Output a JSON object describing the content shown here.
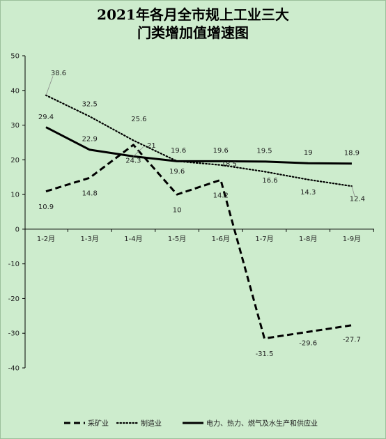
{
  "chart_data": {
    "type": "line",
    "title": "2021年各月全市规上工业三大门类增加值增速图",
    "title_lines": [
      "2021年各月全市规上工业三大",
      "门类增加值增速图"
    ],
    "categories": [
      "1-2月",
      "1-3月",
      "1-4月",
      "1-5月",
      "1-6月",
      "1-7月",
      "1-8月",
      "1-9月"
    ],
    "ylim": [
      -40,
      50
    ],
    "yticks": [
      50,
      40,
      30,
      20,
      10,
      0,
      -10,
      -20,
      -30,
      -40
    ],
    "grid": false,
    "legend_position": "bottom",
    "series": [
      {
        "name": "采矿业",
        "style": "dashed",
        "values": [
          10.9,
          14.8,
          24.3,
          10,
          14.2,
          -31.5,
          -29.6,
          -27.7
        ]
      },
      {
        "name": "制造业",
        "style": "dotted",
        "values": [
          38.6,
          32.5,
          25.6,
          19.6,
          18.5,
          16.6,
          14.3,
          12.4
        ]
      },
      {
        "name": "电力、热力、燃气及水生产和供应业",
        "style": "solid",
        "values": [
          29.4,
          22.9,
          21,
          19.6,
          19.6,
          19.5,
          19,
          18.9
        ]
      }
    ],
    "colors": {
      "line": "#000000",
      "background": "#cdeccd"
    }
  }
}
